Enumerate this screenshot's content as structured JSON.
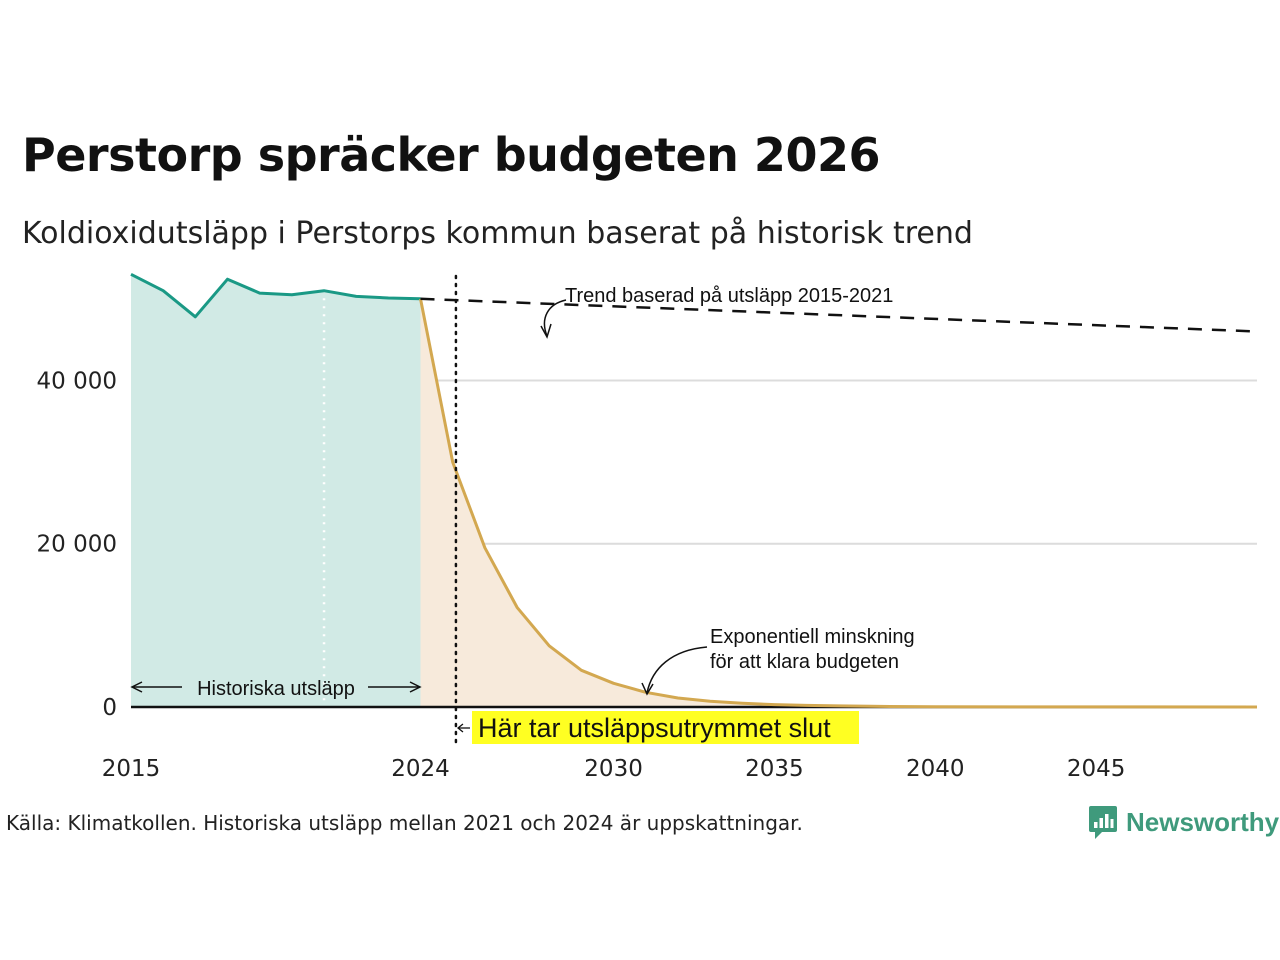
{
  "chart_data": {
    "type": "area",
    "title": "Perstorp spräcker budgeten 2026",
    "subtitle": "Koldioxidutsläpp i Perstorps kommun baserat på historisk trend",
    "xlabel": "",
    "ylabel": "",
    "xlim": [
      2015,
      2050
    ],
    "ylim": [
      0,
      55000
    ],
    "grid": true,
    "x_tick_values": [
      2015,
      2024,
      2030,
      2035,
      2040,
      2045
    ],
    "x_tick_labels": [
      "2015",
      "2024",
      "2030",
      "2035",
      "2040",
      "2045"
    ],
    "y_tick_values": [
      0,
      20000,
      40000
    ],
    "y_tick_labels": [
      "0",
      "20 000",
      "40 000"
    ],
    "series": [
      {
        "name": "Historiska utsläpp",
        "color": "#1a9985",
        "fill": "#d1eae5",
        "x": [
          2015,
          2016,
          2017,
          2018,
          2019,
          2020,
          2021,
          2022,
          2023,
          2024
        ],
        "values": [
          53000,
          51000,
          47800,
          52400,
          50700,
          50500,
          51000,
          50300,
          50100,
          50000
        ]
      },
      {
        "name": "Exponentiell minskning för att klara budgeten",
        "color": "#d3a850",
        "fill": "#f7eadb",
        "x": [
          2024,
          2025,
          2026,
          2027,
          2028,
          2029,
          2030,
          2031,
          2032,
          2033,
          2034,
          2035,
          2036,
          2037,
          2038,
          2040,
          2045,
          2050
        ],
        "values": [
          50000,
          30000,
          19500,
          12200,
          7500,
          4500,
          2900,
          1800,
          1100,
          700,
          450,
          300,
          200,
          130,
          80,
          30,
          10,
          0
        ]
      },
      {
        "name": "Trend baserad på utsläpp 2015-2021",
        "color": "#111111",
        "dashed": true,
        "x": [
          2024,
          2050
        ],
        "values": [
          50000,
          46000
        ]
      }
    ],
    "vertical_markers": [
      {
        "x": 2021,
        "style": "dotted-white",
        "meaning": "historiska utsläpp 2021-2024 uppskattade"
      },
      {
        "x": 2025.1,
        "style": "dotted-black",
        "label": "Här tar utsläppsutrymmet slut"
      }
    ],
    "annotations": {
      "trend": "Trend baserad på utsläpp 2015-2021",
      "decline_line1": "Exponentiell minskning",
      "decline_line2": "för att klara budgeten",
      "historic": "Historiska utsläpp",
      "budget_end": "Här tar utsläppsutrymmet slut"
    },
    "highlight_color": "#ffff22"
  },
  "footer": {
    "source": "Källa: Klimatkollen. Historiska utsläpp mellan 2021 och 2024 är uppskattningar.",
    "brand": "Newsworthy",
    "brand_color": "#3f9a7c",
    "logo_icon": "newsworthy-logo-icon"
  }
}
